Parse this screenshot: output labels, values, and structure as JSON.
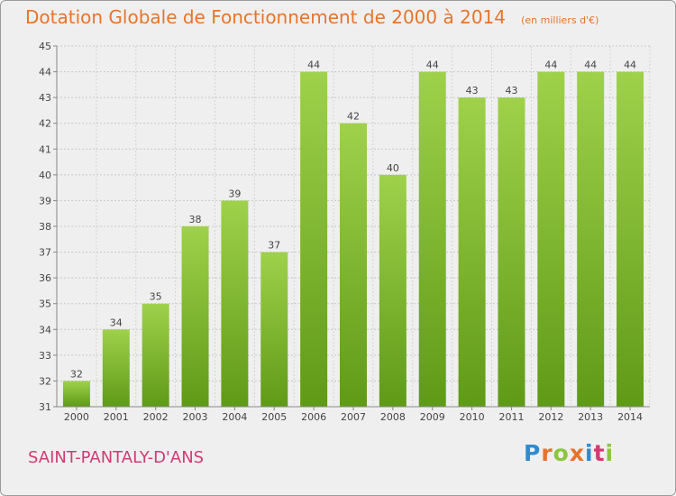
{
  "header": {
    "title": "Dotation Globale de Fonctionnement de 2000 à 2014",
    "subtitle": "(en milliers d'€)"
  },
  "footer": {
    "commune": "SAINT-PANTALY-D'ANS",
    "logo_text": "Proxiti"
  },
  "colors": {
    "bar_top": "#9fd14b",
    "bar_bottom": "#5f9a17",
    "title": "#e8742a",
    "commune": "#d13b74"
  },
  "chart_data": {
    "type": "bar",
    "title": "Dotation Globale de Fonctionnement de 2000 à 2014",
    "subtitle": "(en milliers d'€)",
    "categories": [
      "2000",
      "2001",
      "2002",
      "2003",
      "2004",
      "2005",
      "2006",
      "2007",
      "2008",
      "2009",
      "2010",
      "2011",
      "2012",
      "2013",
      "2014"
    ],
    "values": [
      32,
      34,
      35,
      38,
      39,
      37,
      44,
      42,
      40,
      44,
      43,
      43,
      44,
      44,
      44
    ],
    "data_labels": [
      "32",
      "34",
      "35",
      "38",
      "39",
      "37",
      "44",
      "42",
      "40",
      "44",
      "43",
      "43",
      "44",
      "44",
      "44"
    ],
    "y_ticks": [
      "31",
      "32",
      "33",
      "34",
      "35",
      "36",
      "37",
      "38",
      "39",
      "40",
      "41",
      "42",
      "43",
      "44",
      "45"
    ],
    "ylim": [
      31,
      45
    ],
    "grid": true,
    "xlabel": "",
    "ylabel": ""
  }
}
